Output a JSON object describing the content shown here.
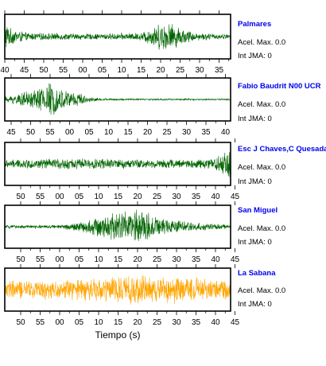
{
  "chart_data": {
    "type": "line",
    "x_axis_title": "Tiempo (s)",
    "grid": false,
    "panels": [
      {
        "station": "Palmares",
        "accel_label": "Acel. Max.",
        "accel_value": "0.0",
        "jma_label": "Int JMA:",
        "jma_value": "0",
        "color": "#006400",
        "tick_labels": [
          "40",
          "45",
          "50",
          "55",
          "00",
          "05",
          "10",
          "15",
          "20",
          "25",
          "30",
          "35"
        ],
        "envelope": [
          [
            0,
            0.95
          ],
          [
            0.02,
            0.45
          ],
          [
            0.1,
            0.2
          ],
          [
            0.4,
            0.15
          ],
          [
            0.6,
            0.2
          ],
          [
            0.66,
            0.55
          ],
          [
            0.7,
            0.75
          ],
          [
            0.74,
            0.7
          ],
          [
            0.78,
            0.45
          ],
          [
            0.85,
            0.2
          ],
          [
            1,
            0.12
          ]
        ]
      },
      {
        "station": "Fabio Baudrit N00 UCR",
        "accel_label": "Acel. Max.",
        "accel_value": "0.0",
        "jma_label": "Int JMA:",
        "jma_value": "0",
        "color": "#006400",
        "tick_labels": [
          "45",
          "50",
          "55",
          "00",
          "05",
          "10",
          "15",
          "20",
          "25",
          "30",
          "35",
          "40"
        ],
        "envelope": [
          [
            0,
            0.15
          ],
          [
            0.05,
            0.3
          ],
          [
            0.12,
            0.5
          ],
          [
            0.2,
            0.95
          ],
          [
            0.25,
            0.55
          ],
          [
            0.32,
            0.45
          ],
          [
            0.36,
            0.15
          ],
          [
            0.45,
            0.05
          ],
          [
            1,
            0.04
          ]
        ]
      },
      {
        "station": "Esc J Chaves,C Quesada",
        "accel_label": "Acel. Max.",
        "accel_value": "0.0",
        "jma_label": "Int JMA:",
        "jma_value": "0",
        "color": "#006400",
        "tick_labels": [
          "50",
          "55",
          "00",
          "05",
          "10",
          "15",
          "20",
          "25",
          "30",
          "35",
          "40",
          "45"
        ],
        "envelope": [
          [
            0,
            0.22
          ],
          [
            0.3,
            0.3
          ],
          [
            0.6,
            0.25
          ],
          [
            0.85,
            0.25
          ],
          [
            0.93,
            0.35
          ],
          [
            0.97,
            0.7
          ],
          [
            1,
            0.95
          ]
        ]
      },
      {
        "station": "San Miguel",
        "accel_label": "Acel. Max.",
        "accel_value": "0.0",
        "jma_label": "Int JMA:",
        "jma_value": "0",
        "color": "#006400",
        "tick_labels": [
          "50",
          "55",
          "00",
          "05",
          "10",
          "15",
          "20",
          "25",
          "30",
          "35",
          "40",
          "45"
        ],
        "envelope": [
          [
            0,
            0.08
          ],
          [
            0.25,
            0.1
          ],
          [
            0.35,
            0.3
          ],
          [
            0.45,
            0.65
          ],
          [
            0.55,
            0.95
          ],
          [
            0.62,
            0.85
          ],
          [
            0.7,
            0.5
          ],
          [
            0.82,
            0.25
          ],
          [
            1,
            0.1
          ]
        ]
      },
      {
        "station": "La Sabana",
        "accel_label": "Acel. Max.",
        "accel_value": "0.0",
        "jma_label": "Int JMA:",
        "jma_value": "0",
        "color": "#ffa500",
        "tick_labels": [
          "50",
          "55",
          "00",
          "05",
          "10",
          "15",
          "20",
          "25",
          "30",
          "35",
          "40",
          "45"
        ],
        "envelope": [
          [
            0,
            0.5
          ],
          [
            0.3,
            0.55
          ],
          [
            0.45,
            0.7
          ],
          [
            0.6,
            0.8
          ],
          [
            0.75,
            0.75
          ],
          [
            1,
            0.55
          ]
        ]
      }
    ]
  }
}
